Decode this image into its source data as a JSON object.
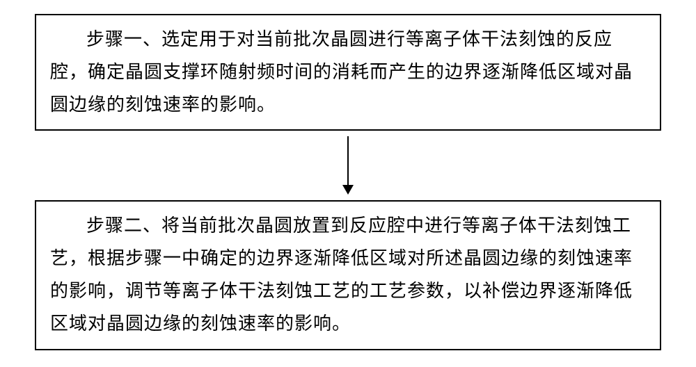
{
  "flowchart": {
    "type": "flowchart",
    "background_color": "#ffffff",
    "box_border_color": "#000000",
    "box_border_width": 2,
    "arrow_color": "#000000",
    "text_color": "#000000",
    "font_size": 26,
    "font_family": "SimSun",
    "text_indent": "2em",
    "nodes": [
      {
        "id": "step1",
        "text": "步骤一、选定用于对当前批次晶圆进行等离子体干法刻蚀的反应腔，确定晶圆支撑环随射频时间的消耗而产生的边界逐渐降低区域对晶圆边缘的刻蚀速率的影响。"
      },
      {
        "id": "step2",
        "text": "步骤二、将当前批次晶圆放置到反应腔中进行等离子体干法刻蚀工艺，根据步骤一中确定的边界逐渐降低区域对所述晶圆边缘的刻蚀速率的影响，调节等离子体干法刻蚀工艺的工艺参数，以补偿边界逐渐降低区域对晶圆边缘的刻蚀速率的影响。"
      }
    ],
    "edges": [
      {
        "from": "step1",
        "to": "step2"
      }
    ]
  }
}
